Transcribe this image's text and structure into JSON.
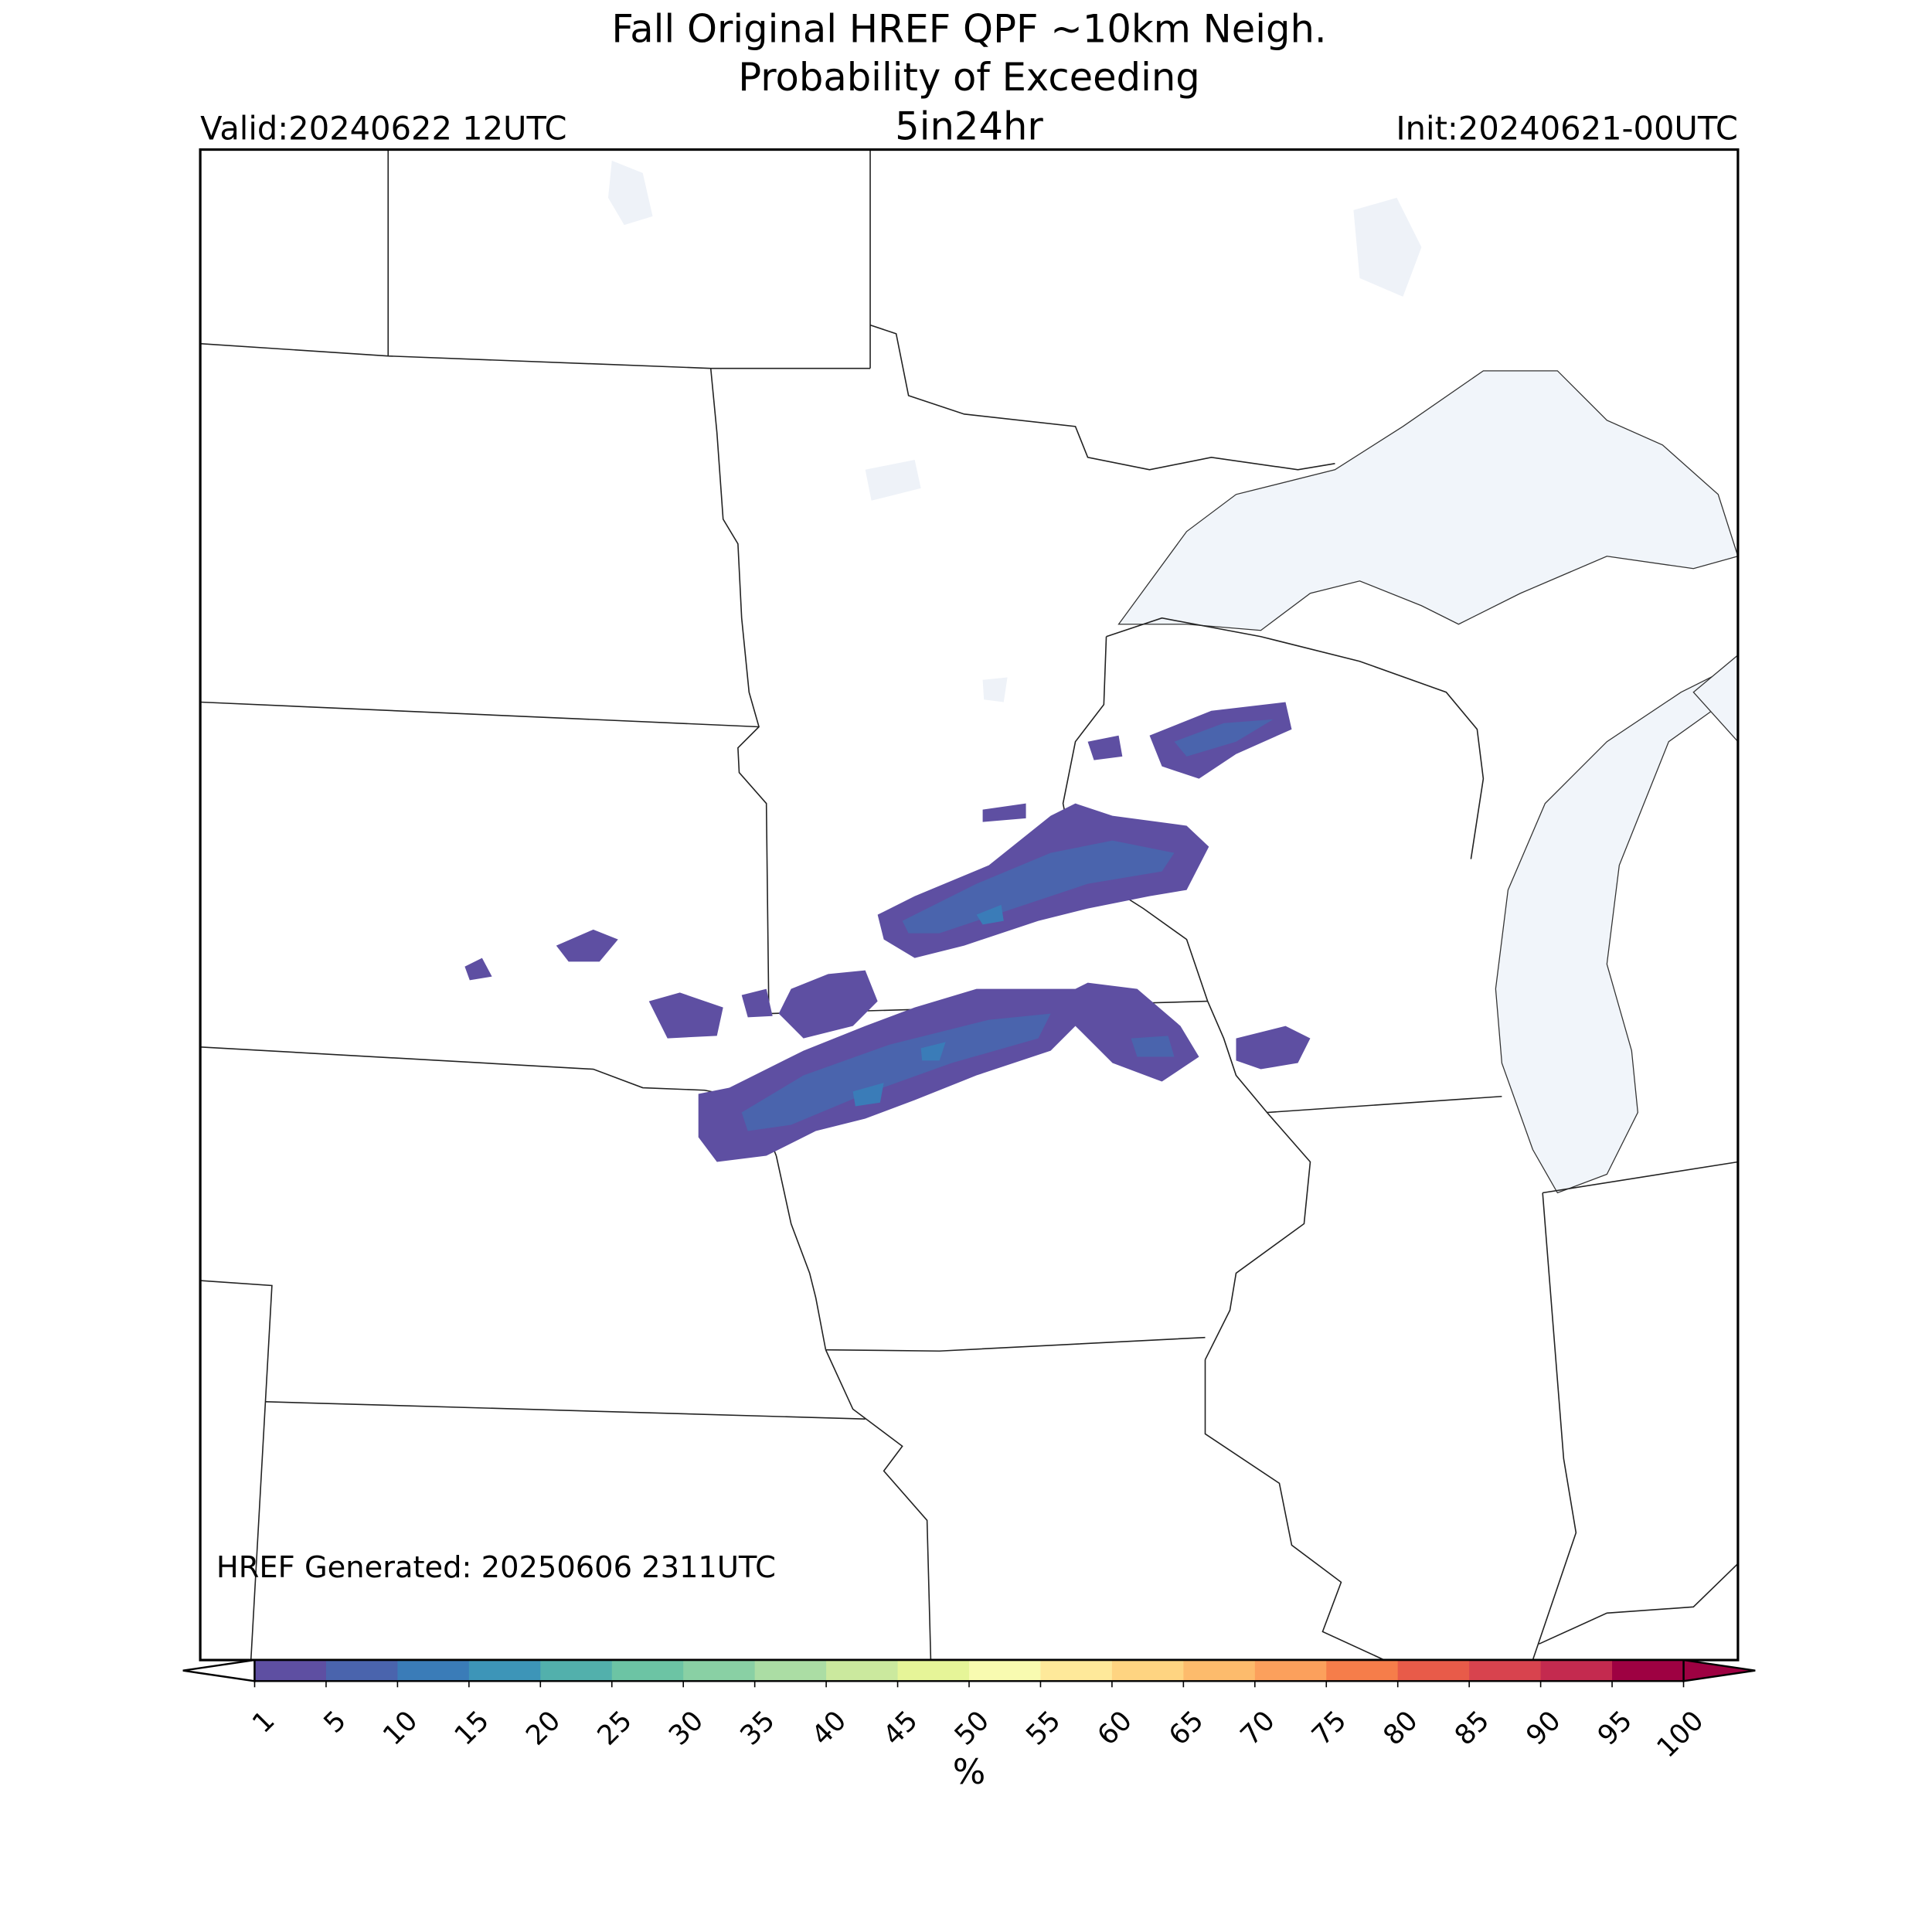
{
  "title": [
    "Fall Original HREF QPF ~10km Neigh.",
    "Probability of Exceeding",
    "5in24hr"
  ],
  "valid": "Valid:20240622 12UTC",
  "init": "Init:20240621-00UTC",
  "generated": "HREF Generated: 20250606 2311UTC",
  "colorbar": {
    "ticks": [
      1,
      5,
      10,
      15,
      20,
      25,
      30,
      35,
      40,
      45,
      50,
      55,
      60,
      65,
      70,
      75,
      80,
      85,
      90,
      95,
      100
    ],
    "label": "%",
    "colors": [
      "#5e4fa2",
      "#4a64ad",
      "#3a7cb8",
      "#3d95b8",
      "#52b0ac",
      "#6cc4a4",
      "#89d0a4",
      "#abdda4",
      "#cbe99e",
      "#e6f598",
      "#f8fbb0",
      "#fee99a",
      "#fed481",
      "#fdbb6c",
      "#fca05c",
      "#f67d4a",
      "#e85b49",
      "#d8434e",
      "#c42a4f",
      "#9e0142"
    ],
    "under_color": "#ffffff",
    "over_color": "#9e0142"
  }
}
